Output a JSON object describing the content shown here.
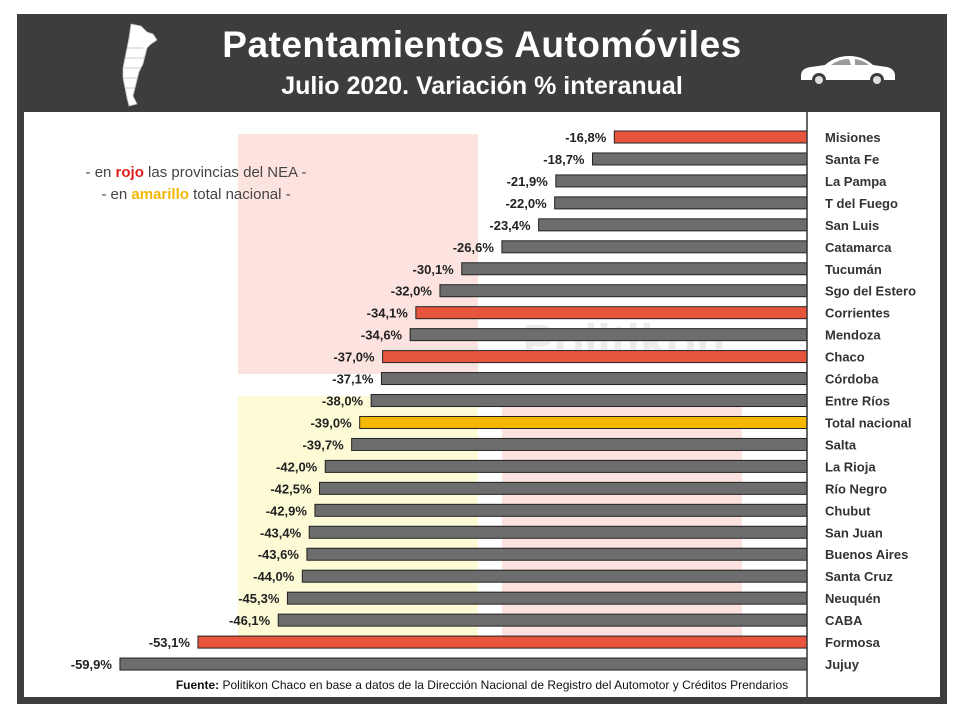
{
  "header": {
    "title": "Patentamientos Automóviles",
    "subtitle": "Julio 2020. Variación % interanual"
  },
  "legend": {
    "line1_prefix": "- en ",
    "line1_highlight": "rojo",
    "line1_suffix": " las provincias del NEA -",
    "line2_prefix": "- en ",
    "line2_highlight": "amarillo",
    "line2_suffix": " total nacional -"
  },
  "watermark": "Politikon",
  "source": {
    "label": "Fuente:",
    "text": " Politikon Chaco en base a datos de la Dirección Nacional de Registro del Automotor y Créditos Prendarios"
  },
  "colors": {
    "nea": "#e8553d",
    "total": "#f5b800",
    "other": "#6d6d6d"
  },
  "icons": {
    "map": "argentina-map-icon",
    "car": "car-icon"
  },
  "chart_data": {
    "type": "bar",
    "orientation": "horizontal",
    "value_suffix": "%",
    "xlim": [
      -60,
      0
    ],
    "categories": [
      "Misiones",
      "Santa Fe",
      "La Pampa",
      "T del Fuego",
      "San Luis",
      "Catamarca",
      "Tucumán",
      "Sgo del Estero",
      "Corrientes",
      "Mendoza",
      "Chaco",
      "Córdoba",
      "Entre Ríos",
      "Total nacional",
      "Salta",
      "La Rioja",
      "Río Negro",
      "Chubut",
      "San Juan",
      "Buenos Aires",
      "Santa Cruz",
      "Neuquén",
      "CABA",
      "Formosa",
      "Jujuy"
    ],
    "values": [
      -16.8,
      -18.7,
      -21.9,
      -22.0,
      -23.4,
      -26.6,
      -30.1,
      -32.0,
      -34.1,
      -34.6,
      -37.0,
      -37.1,
      -38.0,
      -39.0,
      -39.7,
      -42.0,
      -42.5,
      -42.9,
      -43.4,
      -43.6,
      -44.0,
      -45.3,
      -46.1,
      -53.1,
      -59.9
    ],
    "labels": [
      "-16,8%",
      "-18,7%",
      "-21,9%",
      "-22,0%",
      "-23,4%",
      "-26,6%",
      "-30,1%",
      "-32,0%",
      "-34,1%",
      "-34,6%",
      "-37,0%",
      "-37,1%",
      "-38,0%",
      "-39,0%",
      "-39,7%",
      "-42,0%",
      "-42,5%",
      "-42,9%",
      "-43,4%",
      "-43,6%",
      "-44,0%",
      "-45,3%",
      "-46,1%",
      "-53,1%",
      "-59,9%"
    ],
    "groups": [
      "nea",
      "other",
      "other",
      "other",
      "other",
      "other",
      "other",
      "other",
      "nea",
      "other",
      "nea",
      "other",
      "other",
      "total",
      "other",
      "other",
      "other",
      "other",
      "other",
      "other",
      "other",
      "other",
      "other",
      "nea",
      "other"
    ]
  }
}
